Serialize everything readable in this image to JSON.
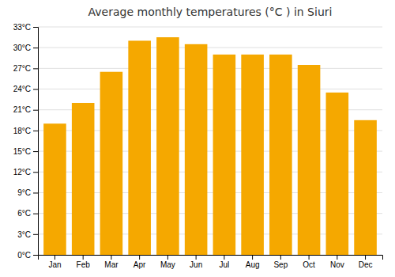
{
  "chart_data": {
    "type": "bar",
    "title": "Average monthly temperatures (°C ) in Siuri",
    "categories": [
      "Jan",
      "Feb",
      "Mar",
      "Apr",
      "May",
      "Jun",
      "Jul",
      "Aug",
      "Sep",
      "Oct",
      "Nov",
      "Dec"
    ],
    "values": [
      19.0,
      22.0,
      26.5,
      31.0,
      31.5,
      30.5,
      29.0,
      29.0,
      29.0,
      27.5,
      23.5,
      19.5
    ],
    "color": "#F5A800",
    "ylim": [
      0,
      33
    ],
    "yticks": [
      {
        "value": 0,
        "label": "0°C"
      },
      {
        "value": 3,
        "label": "3°C"
      },
      {
        "value": 6,
        "label": "6°C"
      },
      {
        "value": 9,
        "label": "9°C"
      },
      {
        "value": 12,
        "label": "12°C"
      },
      {
        "value": 15,
        "label": "15°C"
      },
      {
        "value": 18,
        "label": "18°C"
      },
      {
        "value": 21,
        "label": "21°C"
      },
      {
        "value": 24,
        "label": "24°C"
      },
      {
        "value": 27,
        "label": "27°C"
      },
      {
        "value": 30,
        "label": "30°C"
      },
      {
        "value": 33,
        "label": "33°C"
      }
    ],
    "grid": true
  }
}
